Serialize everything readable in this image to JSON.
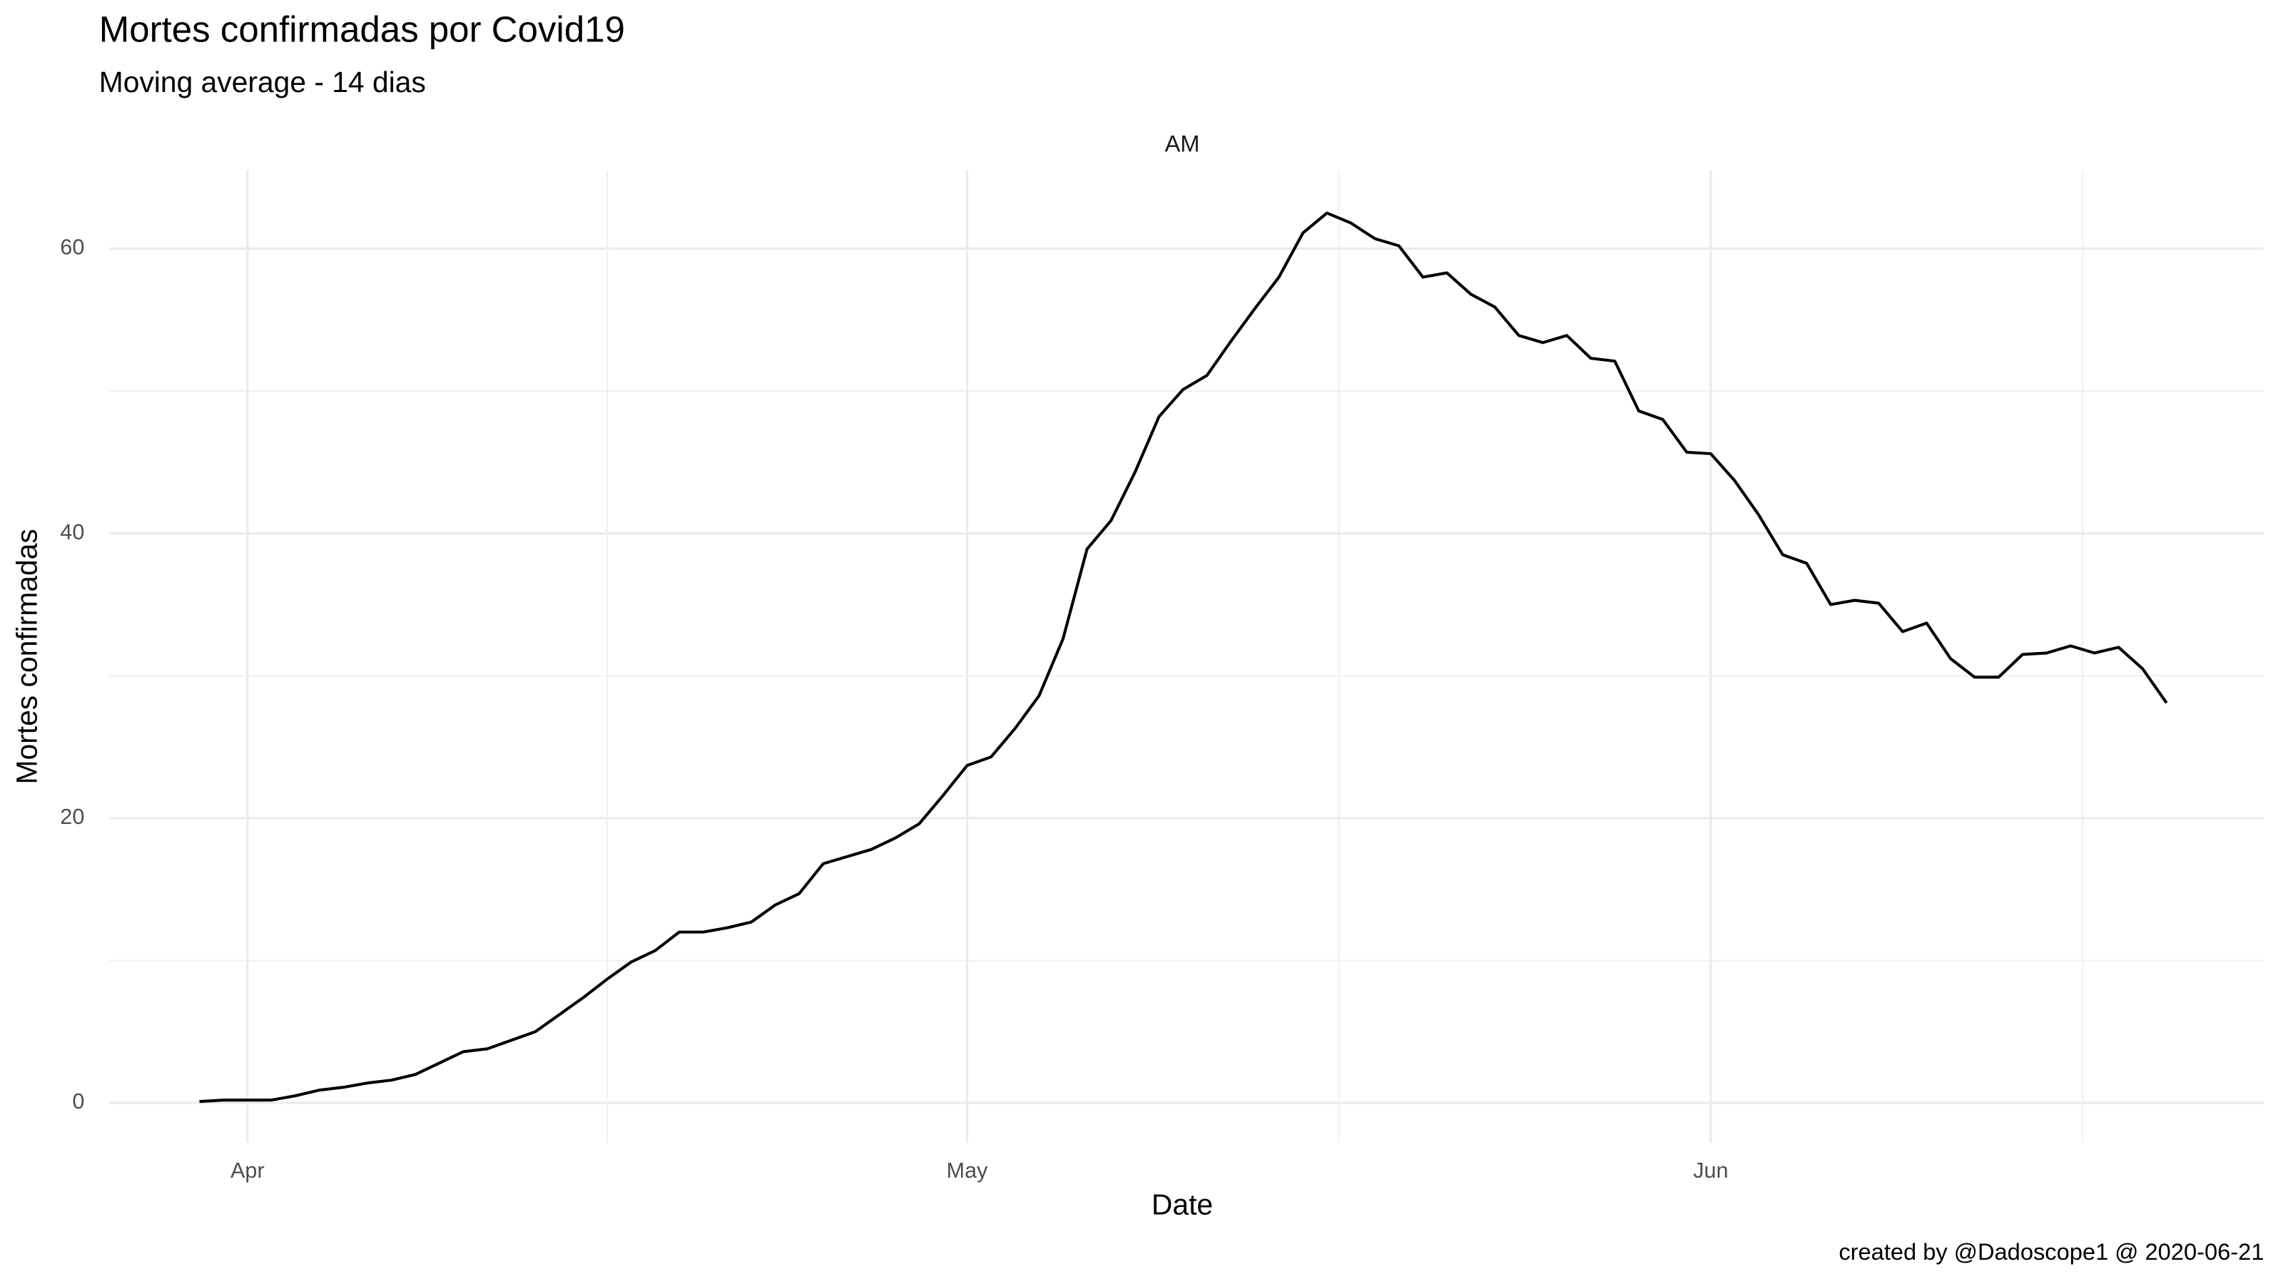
{
  "chart_data": {
    "type": "line",
    "title": "Mortes confirmadas por Covid19",
    "subtitle": "Moving average - 14 dias",
    "facet": "AM",
    "x_label": "Date",
    "y_label": "Mortes confirmadas",
    "caption": "created by @Dadoscope1 @ 2020-06-21",
    "categories": [
      null,
      null,
      "Apr",
      null,
      null,
      null,
      null,
      null,
      null,
      null,
      null,
      null,
      null,
      null,
      null,
      null,
      null,
      null,
      null,
      null,
      null,
      null,
      null,
      null,
      null,
      null,
      null,
      null,
      null,
      null,
      null,
      null,
      "May",
      null,
      null,
      null,
      null,
      null,
      null,
      null,
      null,
      null,
      null,
      null,
      null,
      null,
      null,
      null,
      null,
      null,
      null,
      null,
      null,
      null,
      null,
      null,
      null,
      null,
      null,
      null,
      null,
      null,
      null,
      "Jun",
      null,
      null,
      null,
      null,
      null,
      null,
      null,
      null,
      null,
      null,
      null,
      null,
      null,
      null,
      null,
      null,
      null,
      null,
      null
    ],
    "values": [
      0.1,
      0.2,
      0.2,
      0.2,
      0.5,
      0.9,
      1.1,
      1.4,
      1.6,
      2.0,
      2.8,
      3.6,
      3.8,
      4.4,
      5.0,
      6.2,
      7.4,
      8.7,
      9.9,
      10.7,
      12.0,
      12.0,
      12.3,
      12.7,
      13.9,
      14.7,
      16.8,
      17.3,
      17.8,
      18.6,
      19.6,
      21.6,
      23.7,
      24.3,
      26.3,
      28.6,
      32.6,
      38.9,
      40.9,
      44.3,
      48.2,
      50.1,
      51.1,
      53.5,
      55.8,
      58.0,
      61.1,
      62.5,
      61.8,
      60.7,
      60.2,
      58.0,
      58.3,
      56.8,
      55.9,
      53.9,
      53.4,
      53.9,
      52.3,
      52.1,
      48.6,
      48.0,
      45.7,
      45.6,
      43.7,
      41.3,
      38.5,
      37.9,
      35.0,
      35.3,
      35.1,
      33.1,
      33.7,
      31.2,
      29.9,
      29.9,
      31.5,
      31.6,
      32.1,
      31.6,
      32.0,
      30.5,
      28.1
    ],
    "color": "#000000",
    "ylim": [
      -2.8,
      65.5
    ],
    "yticks": [
      0,
      20,
      40,
      60
    ],
    "grid": true
  }
}
